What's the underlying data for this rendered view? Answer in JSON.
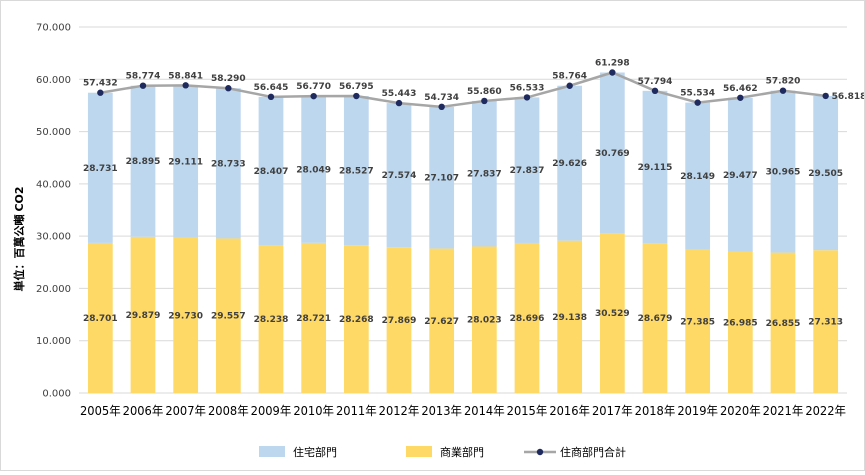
{
  "chart_data": {
    "type": "bar",
    "stacked": true,
    "title": "",
    "ylabel": "単位：百萬公噸",
    "ylabel_sub": "CO2",
    "ylim": [
      0,
      70
    ],
    "y_ticks": [
      "0.000",
      "10.000",
      "20.000",
      "30.000",
      "40.000",
      "50.000",
      "60.000",
      "70.000"
    ],
    "categories": [
      "2005年",
      "2006年",
      "2007年",
      "2008年",
      "2009年",
      "2010年",
      "2011年",
      "2012年",
      "2013年",
      "2014年",
      "2015年",
      "2016年",
      "2017年",
      "2018年",
      "2019年",
      "2020年",
      "2021年",
      "2022年"
    ],
    "series": [
      {
        "name": "商業部門",
        "type": "bar",
        "color": "#ffd966",
        "values": [
          28.701,
          29.879,
          29.73,
          29.557,
          28.238,
          28.721,
          28.268,
          27.869,
          27.627,
          28.023,
          28.696,
          29.138,
          30.529,
          28.679,
          27.385,
          26.985,
          26.855,
          27.313
        ],
        "labels": [
          "28.701",
          "29.879",
          "29.730",
          "29.557",
          "28.238",
          "28.721",
          "28.268",
          "27.869",
          "27.627",
          "28.023",
          "28.696",
          "29.138",
          "30.529",
          "28.679",
          "27.385",
          "26.985",
          "26.855",
          "27.313"
        ]
      },
      {
        "name": "住宅部門",
        "type": "bar",
        "color": "#bdd7ee",
        "values": [
          28.731,
          28.895,
          29.111,
          28.733,
          28.407,
          28.049,
          28.527,
          27.574,
          27.107,
          27.837,
          27.837,
          29.626,
          30.769,
          29.115,
          28.149,
          29.477,
          30.965,
          29.505
        ],
        "labels": [
          "28.731",
          "28.895",
          "29.111",
          "28.733",
          "28.407",
          "28.049",
          "28.527",
          "27.574",
          "27.107",
          "27.837",
          "27.837",
          "29.626",
          "30.769",
          "29.115",
          "28.149",
          "29.477",
          "30.965",
          "29.505"
        ]
      },
      {
        "name": "住商部門合計",
        "type": "line",
        "color": "#a6a6a6",
        "marker_color": "#1f2b5e",
        "values": [
          57.432,
          58.774,
          58.841,
          58.29,
          56.645,
          56.77,
          56.795,
          55.443,
          54.734,
          55.86,
          56.533,
          58.764,
          61.298,
          57.794,
          55.534,
          56.462,
          57.82,
          56.818
        ],
        "labels": [
          "57.432",
          "58.774",
          "58.841",
          "58.290",
          "56.645",
          "56.770",
          "56.795",
          "55.443",
          "54.734",
          "55.860",
          "56.533",
          "58.764",
          "61.298",
          "57.794",
          "55.534",
          "56.462",
          "57.820",
          "56.818"
        ]
      }
    ],
    "legend_order": [
      "住宅部門",
      "商業部門",
      "住商部門合計"
    ],
    "legend_position": "bottom",
    "grid": true
  }
}
